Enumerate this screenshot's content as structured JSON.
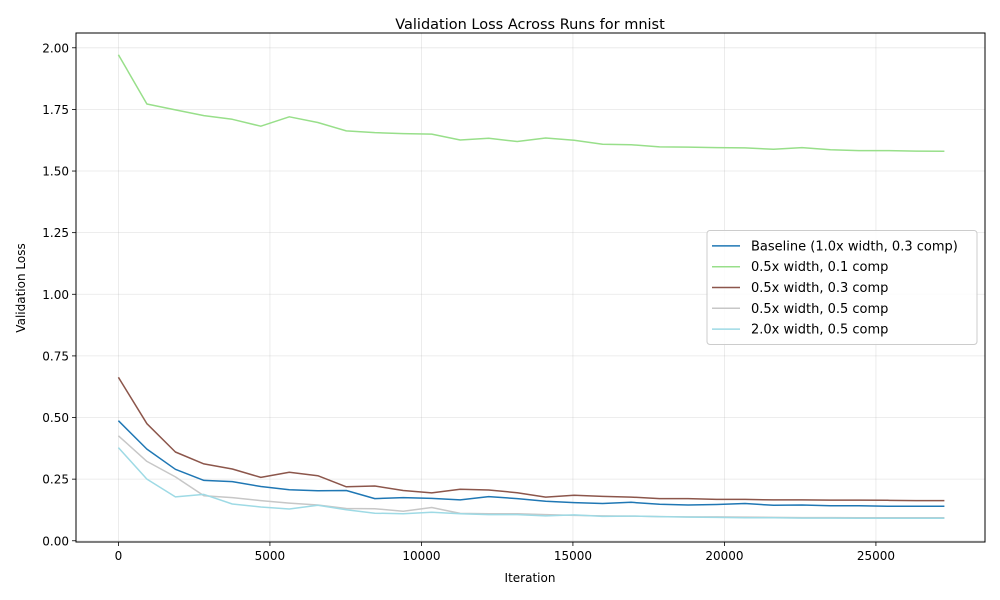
{
  "chart_data": {
    "type": "line",
    "title": "Validation Loss Across Runs for mnist",
    "xlabel": "Iteration",
    "ylabel": "Validation Loss",
    "xlim": [
      -1400,
      28600
    ],
    "ylim": [
      -0.005,
      2.06
    ],
    "xticks": [
      0,
      5000,
      10000,
      15000,
      20000,
      25000
    ],
    "xtick_labels": [
      "0",
      "5000",
      "10000",
      "15000",
      "20000",
      "25000"
    ],
    "yticks": [
      0.0,
      0.25,
      0.5,
      0.75,
      1.0,
      1.25,
      1.5,
      1.75,
      2.0
    ],
    "ytick_labels": [
      "0.00",
      "0.25",
      "0.50",
      "0.75",
      "1.00",
      "1.25",
      "1.50",
      "1.75",
      "2.00"
    ],
    "grid": true,
    "legend_position": "center-right",
    "x": [
      0,
      940,
      1880,
      2820,
      3760,
      4700,
      5640,
      6580,
      7520,
      8460,
      9400,
      10340,
      11280,
      12220,
      13160,
      14100,
      15040,
      15980,
      16920,
      17860,
      18800,
      19740,
      20680,
      21620,
      22560,
      23500,
      24440,
      25380,
      26320,
      27260
    ],
    "series": [
      {
        "name": "Baseline (1.0x width, 0.3 comp)",
        "color": "#1f77b4",
        "values": [
          0.487,
          0.372,
          0.29,
          0.245,
          0.24,
          0.22,
          0.207,
          0.203,
          0.204,
          0.171,
          0.175,
          0.172,
          0.166,
          0.179,
          0.171,
          0.16,
          0.155,
          0.151,
          0.156,
          0.148,
          0.145,
          0.147,
          0.151,
          0.144,
          0.145,
          0.142,
          0.142,
          0.14,
          0.14,
          0.14
        ]
      },
      {
        "name": "0.5x width, 0.1 comp",
        "color": "#98df8a",
        "values": [
          1.972,
          1.772,
          1.748,
          1.725,
          1.71,
          1.682,
          1.72,
          1.697,
          1.663,
          1.656,
          1.652,
          1.65,
          1.626,
          1.633,
          1.62,
          1.634,
          1.625,
          1.609,
          1.607,
          1.598,
          1.597,
          1.595,
          1.594,
          1.588,
          1.595,
          1.586,
          1.583,
          1.583,
          1.581,
          1.58
        ]
      },
      {
        "name": "0.5x width, 0.3 comp",
        "color": "#8c564b",
        "values": [
          0.663,
          0.475,
          0.36,
          0.312,
          0.291,
          0.257,
          0.278,
          0.264,
          0.219,
          0.222,
          0.204,
          0.194,
          0.209,
          0.206,
          0.195,
          0.177,
          0.185,
          0.18,
          0.177,
          0.171,
          0.171,
          0.168,
          0.168,
          0.166,
          0.166,
          0.165,
          0.165,
          0.164,
          0.163,
          0.163
        ]
      },
      {
        "name": "0.5x width, 0.5 comp",
        "color": "#c7c7c7",
        "values": [
          0.426,
          0.322,
          0.259,
          0.183,
          0.175,
          0.163,
          0.153,
          0.145,
          0.131,
          0.13,
          0.12,
          0.135,
          0.111,
          0.11,
          0.11,
          0.106,
          0.103,
          0.101,
          0.1,
          0.098,
          0.097,
          0.097,
          0.096,
          0.095,
          0.094,
          0.094,
          0.093,
          0.093,
          0.093,
          0.093
        ]
      },
      {
        "name": "2.0x width, 0.5 comp",
        "color": "#9edae5",
        "values": [
          0.378,
          0.25,
          0.178,
          0.188,
          0.149,
          0.137,
          0.129,
          0.144,
          0.126,
          0.112,
          0.11,
          0.116,
          0.11,
          0.106,
          0.106,
          0.101,
          0.105,
          0.099,
          0.1,
          0.098,
          0.096,
          0.095,
          0.093,
          0.093,
          0.092,
          0.092,
          0.091,
          0.091,
          0.091,
          0.091
        ]
      }
    ]
  }
}
